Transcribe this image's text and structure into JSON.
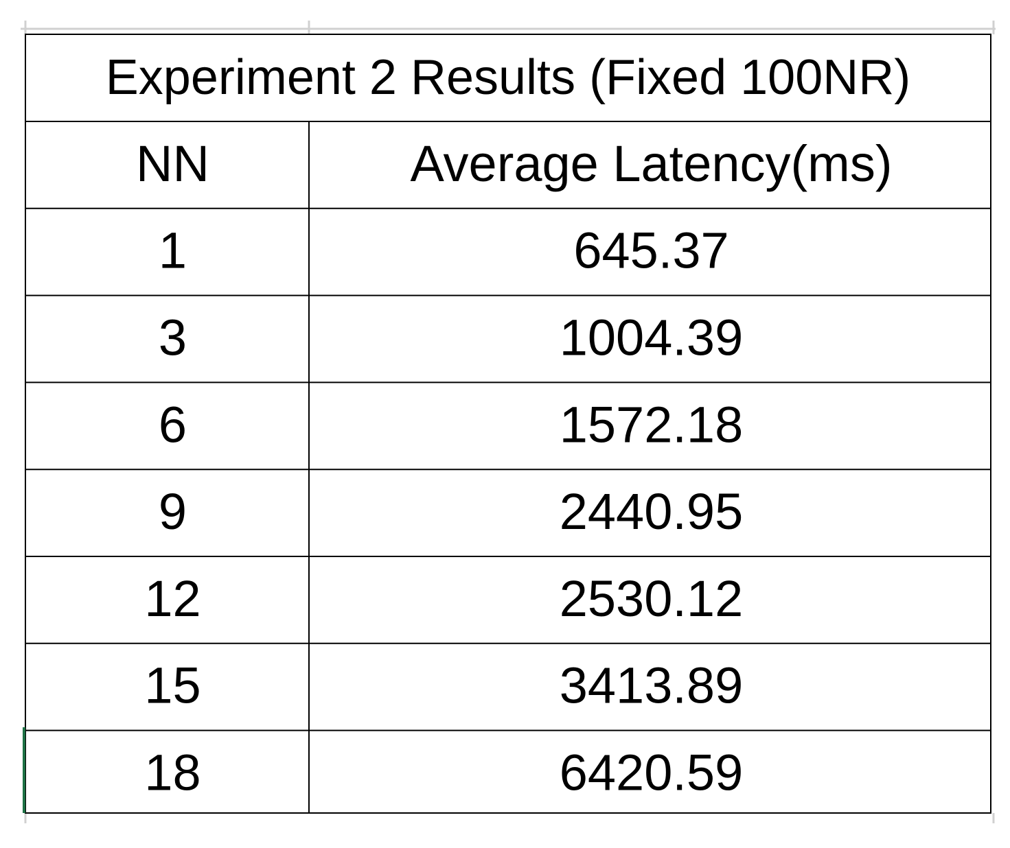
{
  "table": {
    "title": "Experiment 2 Results (Fixed 100NR)",
    "header": [
      "NN",
      "Average Latency(ms)"
    ],
    "rows": [
      [
        "1",
        "645.37"
      ],
      [
        "3",
        "1004.39"
      ],
      [
        "6",
        "1572.18"
      ],
      [
        "9",
        "2440.95"
      ],
      [
        "12",
        "2530.12"
      ],
      [
        "15",
        "3413.89"
      ],
      [
        "18",
        "6420.59"
      ]
    ]
  }
}
